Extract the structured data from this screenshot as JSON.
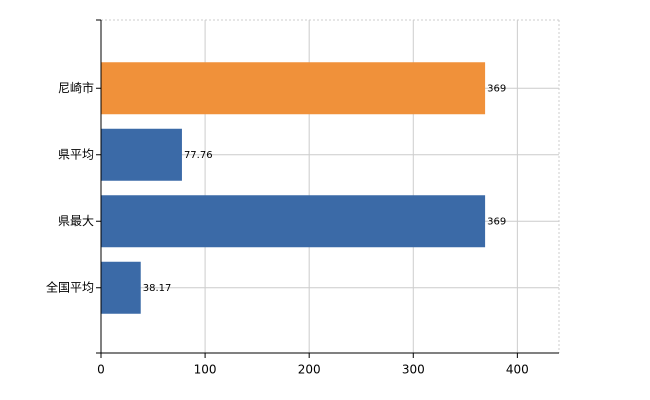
{
  "chart_data": {
    "type": "bar",
    "orientation": "horizontal",
    "categories": [
      "尼崎市",
      "県平均",
      "県最大",
      "全国平均"
    ],
    "values": [
      369,
      77.76,
      369,
      38.17
    ],
    "colors": [
      "#f0913a",
      "#3b6aa7",
      "#3b6aa7",
      "#3b6aa7"
    ],
    "xlim": [
      0,
      440
    ],
    "xticks": [
      0,
      100,
      200,
      300,
      400
    ],
    "grid": true
  }
}
